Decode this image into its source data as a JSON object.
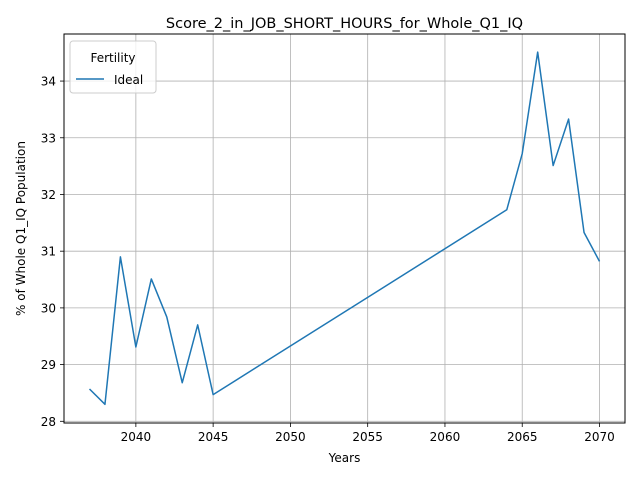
{
  "chart_data": {
    "type": "line",
    "title": "Score_2_in_JOB_SHORT_HOURS_for_Whole_Q1_IQ",
    "xlabel": "Years",
    "ylabel": "% of Whole Q1_IQ Population",
    "xlim": [
      2035.35,
      2071.65
    ],
    "ylim": [
      27.97,
      34.83
    ],
    "xticks": [
      2040,
      2045,
      2050,
      2055,
      2060,
      2065,
      2070
    ],
    "yticks": [
      28,
      29,
      30,
      31,
      32,
      33,
      34
    ],
    "grid": true,
    "legend": {
      "title": "Fertility",
      "placement": "top-left"
    },
    "series": [
      {
        "name": "Ideal",
        "color": "#1f77b4",
        "x": [
          2037,
          2038,
          2039,
          2040,
          2041,
          2042,
          2043,
          2044,
          2045,
          2064,
          2065,
          2066,
          2067,
          2068,
          2069,
          2070
        ],
        "y": [
          28.57,
          28.3,
          30.9,
          29.31,
          30.51,
          29.84,
          28.68,
          29.7,
          28.47,
          31.73,
          32.72,
          34.51,
          32.51,
          33.33,
          31.33,
          30.82
        ]
      }
    ]
  }
}
